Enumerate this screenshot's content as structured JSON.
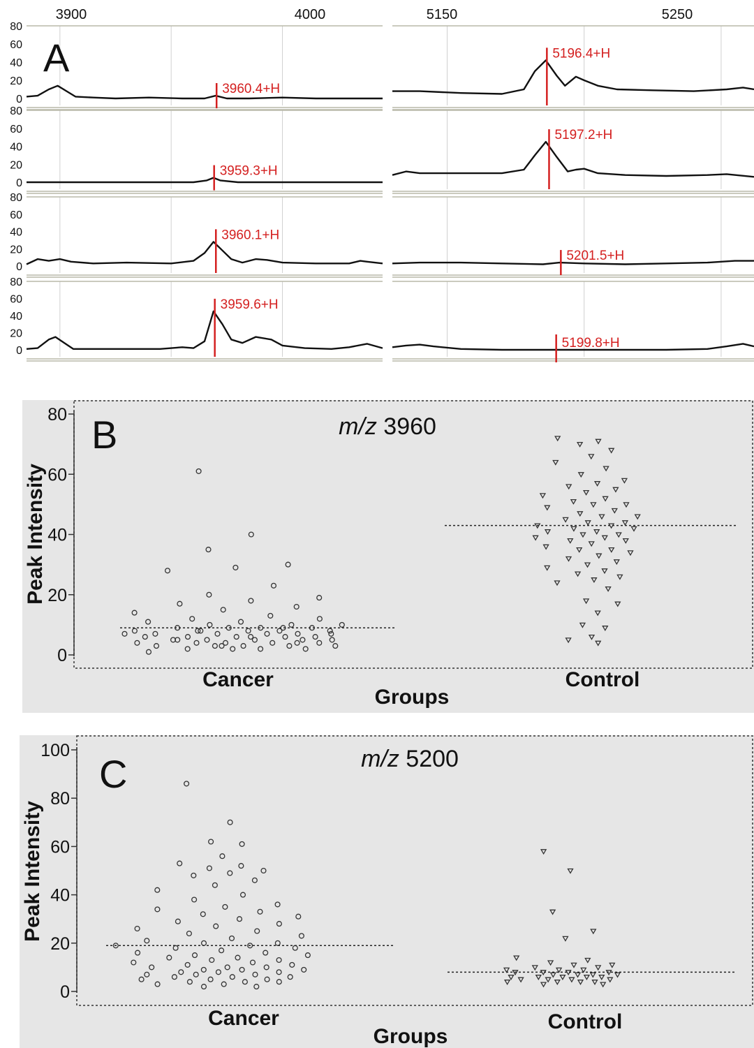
{
  "figure": {
    "panel_a": {
      "letter": "A",
      "left_axis_ticks": [
        "3900",
        "4000"
      ],
      "right_axis_ticks": [
        "5150",
        "5250"
      ],
      "y_ticks": [
        "80",
        "60",
        "40",
        "20",
        "0"
      ],
      "peak_color": "#d42020",
      "trace_color": "#111111"
    },
    "panel_b": {
      "letter": "B",
      "title_italic": "m/z",
      "title_value": " 3960"
    },
    "panel_c": {
      "letter": "C",
      "title_italic": "m/z",
      "title_value": " 5200"
    },
    "colors": {
      "panel_bg": "#e6e6e6",
      "marker": "#333333"
    }
  },
  "chart_data": [
    {
      "type": "line",
      "panel": "A",
      "xlim_left": [
        3875,
        4035
      ],
      "xlim_right": [
        5140,
        5272
      ],
      "ylim": [
        0,
        80
      ],
      "rows": [
        {
          "left": {
            "peak_label": "3960.4+H",
            "peak_x": 3960.4,
            "points": [
              [
                3875,
                2
              ],
              [
                3880,
                3
              ],
              [
                3885,
                10
              ],
              [
                3889,
                14
              ],
              [
                3893,
                8
              ],
              [
                3897,
                2
              ],
              [
                3905,
                1
              ],
              [
                3915,
                0
              ],
              [
                3930,
                1
              ],
              [
                3945,
                0
              ],
              [
                3955,
                0
              ],
              [
                3960,
                3
              ],
              [
                3965,
                0
              ],
              [
                3975,
                0
              ],
              [
                3990,
                1
              ],
              [
                4005,
                0
              ],
              [
                4020,
                0
              ],
              [
                4035,
                0
              ]
            ]
          },
          "right": {
            "peak_label": "5196.4+H",
            "peak_x": 5196.4,
            "points": [
              [
                5140,
                8
              ],
              [
                5150,
                8
              ],
              [
                5165,
                6
              ],
              [
                5180,
                5
              ],
              [
                5188,
                10
              ],
              [
                5192,
                30
              ],
              [
                5196,
                42
              ],
              [
                5200,
                25
              ],
              [
                5203,
                14
              ],
              [
                5207,
                24
              ],
              [
                5210,
                20
              ],
              [
                5215,
                14
              ],
              [
                5222,
                10
              ],
              [
                5235,
                9
              ],
              [
                5250,
                8
              ],
              [
                5262,
                10
              ],
              [
                5268,
                12
              ],
              [
                5272,
                10
              ]
            ]
          }
        },
        {
          "left": {
            "peak_label": "3959.3+H",
            "peak_x": 3959.3,
            "points": [
              [
                3875,
                0
              ],
              [
                3900,
                0
              ],
              [
                3930,
                0
              ],
              [
                3950,
                0
              ],
              [
                3956,
                2
              ],
              [
                3959,
                5
              ],
              [
                3962,
                2
              ],
              [
                3970,
                0
              ],
              [
                3990,
                0
              ],
              [
                4010,
                0
              ],
              [
                4035,
                0
              ]
            ]
          },
          "right": {
            "peak_label": "5197.2+H",
            "peak_x": 5197.2,
            "points": [
              [
                5140,
                8
              ],
              [
                5145,
                12
              ],
              [
                5150,
                10
              ],
              [
                5165,
                10
              ],
              [
                5180,
                10
              ],
              [
                5188,
                14
              ],
              [
                5192,
                30
              ],
              [
                5196,
                45
              ],
              [
                5200,
                28
              ],
              [
                5204,
                12
              ],
              [
                5207,
                14
              ],
              [
                5210,
                15
              ],
              [
                5215,
                10
              ],
              [
                5225,
                8
              ],
              [
                5240,
                7
              ],
              [
                5255,
                8
              ],
              [
                5262,
                9
              ],
              [
                5272,
                6
              ]
            ]
          }
        },
        {
          "left": {
            "peak_label": "3960.1+H",
            "peak_x": 3960.1,
            "points": [
              [
                3875,
                2
              ],
              [
                3880,
                8
              ],
              [
                3885,
                6
              ],
              [
                3890,
                8
              ],
              [
                3895,
                5
              ],
              [
                3905,
                3
              ],
              [
                3920,
                4
              ],
              [
                3940,
                3
              ],
              [
                3950,
                6
              ],
              [
                3955,
                15
              ],
              [
                3959,
                28
              ],
              [
                3963,
                18
              ],
              [
                3967,
                8
              ],
              [
                3972,
                4
              ],
              [
                3978,
                8
              ],
              [
                3983,
                7
              ],
              [
                3990,
                4
              ],
              [
                4005,
                3
              ],
              [
                4020,
                3
              ],
              [
                4025,
                6
              ],
              [
                4028,
                5
              ],
              [
                4035,
                3
              ]
            ]
          },
          "right": {
            "peak_label": "5201.5+H",
            "peak_x": 5201.5,
            "points": [
              [
                5140,
                3
              ],
              [
                5150,
                4
              ],
              [
                5165,
                4
              ],
              [
                5180,
                3
              ],
              [
                5195,
                2
              ],
              [
                5201,
                4
              ],
              [
                5210,
                3
              ],
              [
                5225,
                2
              ],
              [
                5240,
                3
              ],
              [
                5255,
                4
              ],
              [
                5265,
                6
              ],
              [
                5272,
                6
              ]
            ]
          }
        },
        {
          "left": {
            "peak_label": "3959.6+H",
            "peak_x": 3959.6,
            "points": [
              [
                3875,
                1
              ],
              [
                3880,
                2
              ],
              [
                3885,
                12
              ],
              [
                3888,
                15
              ],
              [
                3892,
                8
              ],
              [
                3896,
                1
              ],
              [
                3910,
                1
              ],
              [
                3935,
                1
              ],
              [
                3945,
                3
              ],
              [
                3950,
                2
              ],
              [
                3955,
                10
              ],
              [
                3959,
                45
              ],
              [
                3963,
                30
              ],
              [
                3967,
                12
              ],
              [
                3972,
                8
              ],
              [
                3978,
                15
              ],
              [
                3985,
                12
              ],
              [
                3990,
                5
              ],
              [
                4000,
                2
              ],
              [
                4012,
                1
              ],
              [
                4020,
                3
              ],
              [
                4028,
                7
              ],
              [
                4035,
                2
              ]
            ]
          },
          "right": {
            "peak_label": "5199.8+H",
            "peak_x": 5199.8,
            "points": [
              [
                5140,
                3
              ],
              [
                5145,
                5
              ],
              [
                5150,
                6
              ],
              [
                5155,
                4
              ],
              [
                5165,
                1
              ],
              [
                5180,
                0
              ],
              [
                5199,
                0
              ],
              [
                5215,
                0
              ],
              [
                5240,
                0
              ],
              [
                5255,
                1
              ],
              [
                5262,
                4
              ],
              [
                5268,
                7
              ],
              [
                5272,
                4
              ]
            ]
          }
        }
      ]
    },
    {
      "type": "scatter",
      "panel": "B",
      "title": "m/z 3960",
      "ylabel": "Peak Intensity",
      "xlabel": "Groups",
      "categories": [
        "Cancer",
        "Control"
      ],
      "ylim": [
        0,
        80
      ],
      "yticks": [
        0,
        20,
        40,
        60,
        80
      ],
      "medians": {
        "Cancer": 9,
        "Control": 43
      },
      "series": [
        {
          "name": "Cancer",
          "marker": "circle",
          "values": [
            61,
            40,
            35,
            30,
            29,
            28,
            23,
            20,
            19,
            18,
            17,
            16,
            15,
            14,
            13,
            12,
            12,
            11,
            11,
            10,
            10,
            10,
            9,
            9,
            9,
            9,
            8,
            8,
            8,
            8,
            8,
            7,
            7,
            7,
            7,
            7,
            6,
            6,
            6,
            6,
            6,
            5,
            5,
            5,
            5,
            5,
            4,
            4,
            4,
            4,
            4,
            3,
            3,
            3,
            3,
            3,
            2,
            2,
            2,
            2,
            1,
            9,
            8,
            7,
            6,
            5,
            4,
            3
          ]
        },
        {
          "name": "Control",
          "marker": "triangle",
          "values": [
            72,
            71,
            70,
            68,
            66,
            64,
            62,
            60,
            58,
            57,
            56,
            55,
            54,
            53,
            52,
            51,
            50,
            50,
            49,
            48,
            47,
            46,
            46,
            45,
            44,
            44,
            43,
            43,
            42,
            42,
            41,
            41,
            40,
            40,
            39,
            39,
            38,
            38,
            37,
            36,
            35,
            35,
            34,
            33,
            32,
            31,
            30,
            29,
            28,
            27,
            26,
            25,
            24,
            22,
            18,
            17,
            14,
            10,
            9,
            6,
            5,
            4
          ]
        }
      ]
    },
    {
      "type": "scatter",
      "panel": "C",
      "title": "m/z 5200",
      "ylabel": "Peak Intensity",
      "xlabel": "Groups",
      "categories": [
        "Cancer",
        "Control"
      ],
      "ylim": [
        0,
        100
      ],
      "yticks": [
        0,
        20,
        40,
        60,
        80,
        100
      ],
      "medians": {
        "Cancer": 19,
        "Control": 8
      },
      "series": [
        {
          "name": "Cancer",
          "marker": "circle",
          "values": [
            86,
            70,
            62,
            61,
            56,
            53,
            52,
            51,
            50,
            49,
            48,
            46,
            44,
            42,
            40,
            38,
            36,
            35,
            34,
            33,
            32,
            31,
            30,
            29,
            28,
            27,
            26,
            25,
            24,
            23,
            22,
            21,
            20,
            20,
            19,
            19,
            18,
            18,
            17,
            16,
            16,
            15,
            15,
            14,
            14,
            13,
            13,
            12,
            12,
            11,
            11,
            10,
            10,
            10,
            9,
            9,
            9,
            8,
            8,
            8,
            7,
            7,
            7,
            6,
            6,
            6,
            5,
            5,
            5,
            4,
            4,
            4,
            3,
            3,
            2,
            2
          ]
        },
        {
          "name": "Control",
          "marker": "triangle",
          "values": [
            58,
            50,
            33,
            25,
            22,
            14,
            13,
            12,
            11,
            11,
            10,
            10,
            9,
            9,
            9,
            8,
            8,
            8,
            8,
            7,
            7,
            7,
            7,
            6,
            6,
            6,
            6,
            6,
            5,
            5,
            5,
            5,
            4,
            4,
            4,
            4,
            3,
            3
          ]
        }
      ]
    }
  ]
}
